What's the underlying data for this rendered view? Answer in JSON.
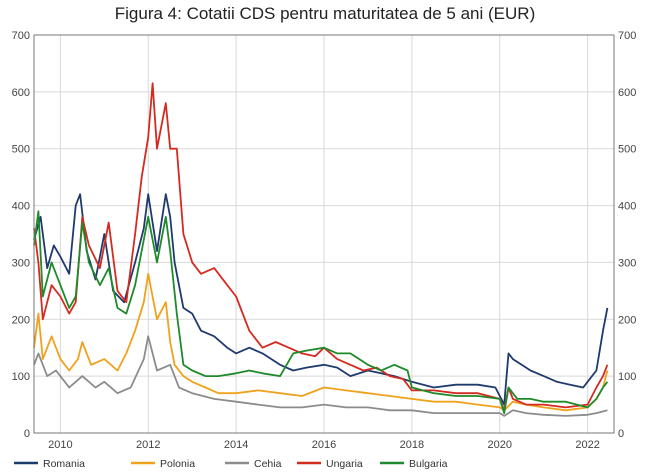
{
  "chart_data": {
    "type": "line",
    "title": "Figura 4: Cotatii CDS pentru maturitatea de 5 ani (EUR)",
    "xlabel": "",
    "ylabel": "",
    "xlim": [
      2009.4,
      2022.6
    ],
    "ylim": [
      0,
      700
    ],
    "yticks": [
      0,
      100,
      200,
      300,
      400,
      500,
      600,
      700
    ],
    "xticks": [
      2010,
      2012,
      2014,
      2016,
      2018,
      2020,
      2022
    ],
    "grid": true,
    "legend_position": "bottom",
    "series": [
      {
        "name": "Romania",
        "color": "#1f3a6e",
        "x": [
          2009.4,
          2009.55,
          2009.7,
          2009.85,
          2010.0,
          2010.2,
          2010.35,
          2010.45,
          2010.6,
          2010.8,
          2011.0,
          2011.2,
          2011.45,
          2011.7,
          2011.9,
          2012.0,
          2012.2,
          2012.4,
          2012.5,
          2012.6,
          2012.8,
          2013.0,
          2013.2,
          2013.5,
          2013.8,
          2014.0,
          2014.3,
          2014.6,
          2015.0,
          2015.3,
          2015.6,
          2016.0,
          2016.3,
          2016.6,
          2017.0,
          2017.3,
          2017.6,
          2018.0,
          2018.5,
          2019.0,
          2019.5,
          2019.9,
          2020.1,
          2020.2,
          2020.3,
          2020.5,
          2020.7,
          2021.0,
          2021.3,
          2021.6,
          2021.9,
          2022.0,
          2022.2,
          2022.35,
          2022.45
        ],
        "y": [
          340,
          380,
          290,
          330,
          310,
          280,
          400,
          420,
          320,
          270,
          350,
          250,
          230,
          300,
          360,
          420,
          320,
          420,
          380,
          300,
          220,
          210,
          180,
          170,
          150,
          140,
          150,
          140,
          120,
          110,
          115,
          120,
          115,
          100,
          110,
          105,
          100,
          90,
          80,
          85,
          85,
          80,
          50,
          140,
          130,
          120,
          110,
          100,
          90,
          85,
          80,
          90,
          110,
          180,
          220
        ]
      },
      {
        "name": "Polonia",
        "color": "#f0a21c",
        "x": [
          2009.4,
          2009.5,
          2009.6,
          2009.8,
          2010.0,
          2010.2,
          2010.4,
          2010.5,
          2010.7,
          2011.0,
          2011.3,
          2011.5,
          2011.7,
          2011.9,
          2012.0,
          2012.2,
          2012.4,
          2012.5,
          2012.6,
          2012.8,
          2013.0,
          2013.3,
          2013.6,
          2014.0,
          2014.5,
          2015.0,
          2015.5,
          2016.0,
          2016.5,
          2017.0,
          2017.5,
          2018.0,
          2018.5,
          2019.0,
          2019.5,
          2020.0,
          2020.1,
          2020.3,
          2020.6,
          2021.0,
          2021.5,
          2022.0,
          2022.2,
          2022.35,
          2022.45
        ],
        "y": [
          150,
          210,
          130,
          170,
          130,
          110,
          130,
          160,
          120,
          130,
          110,
          140,
          180,
          230,
          280,
          200,
          230,
          160,
          120,
          100,
          90,
          80,
          70,
          70,
          75,
          70,
          65,
          80,
          75,
          70,
          65,
          60,
          55,
          55,
          50,
          45,
          40,
          55,
          50,
          45,
          40,
          45,
          60,
          80,
          110
        ]
      },
      {
        "name": "Cehia",
        "color": "#8c8c8c",
        "x": [
          2009.4,
          2009.5,
          2009.7,
          2009.9,
          2010.2,
          2010.5,
          2010.8,
          2011.0,
          2011.3,
          2011.6,
          2011.9,
          2012.0,
          2012.2,
          2012.5,
          2012.7,
          2013.0,
          2013.5,
          2014.0,
          2014.5,
          2015.0,
          2015.5,
          2016.0,
          2016.5,
          2017.0,
          2017.5,
          2018.0,
          2018.5,
          2019.0,
          2019.5,
          2020.0,
          2020.1,
          2020.3,
          2020.6,
          2021.0,
          2021.5,
          2022.0,
          2022.2,
          2022.45
        ],
        "y": [
          120,
          140,
          100,
          110,
          80,
          100,
          80,
          90,
          70,
          80,
          130,
          170,
          110,
          120,
          80,
          70,
          60,
          55,
          50,
          45,
          45,
          50,
          45,
          45,
          40,
          40,
          35,
          35,
          35,
          35,
          30,
          40,
          35,
          32,
          30,
          32,
          35,
          40
        ]
      },
      {
        "name": "Ungaria",
        "color": "#d42a20",
        "x": [
          2009.4,
          2009.5,
          2009.6,
          2009.8,
          2010.0,
          2010.2,
          2010.35,
          2010.5,
          2010.65,
          2010.9,
          2011.1,
          2011.3,
          2011.5,
          2011.7,
          2011.85,
          2012.0,
          2012.1,
          2012.2,
          2012.4,
          2012.5,
          2012.65,
          2012.8,
          2013.0,
          2013.2,
          2013.5,
          2013.8,
          2014.0,
          2014.3,
          2014.6,
          2014.9,
          2015.2,
          2015.5,
          2015.8,
          2016.0,
          2016.3,
          2016.6,
          2016.9,
          2017.2,
          2017.5,
          2017.8,
          2018.0,
          2018.5,
          2019.0,
          2019.5,
          2020.0,
          2020.1,
          2020.2,
          2020.3,
          2020.6,
          2021.0,
          2021.5,
          2022.0,
          2022.2,
          2022.35,
          2022.45
        ],
        "y": [
          360,
          300,
          200,
          260,
          240,
          210,
          230,
          380,
          330,
          290,
          370,
          250,
          230,
          350,
          450,
          520,
          615,
          500,
          580,
          500,
          500,
          350,
          300,
          280,
          290,
          260,
          240,
          180,
          150,
          160,
          150,
          140,
          135,
          150,
          130,
          120,
          110,
          115,
          100,
          95,
          75,
          75,
          70,
          70,
          60,
          40,
          80,
          60,
          50,
          50,
          45,
          50,
          80,
          100,
          120
        ]
      },
      {
        "name": "Bulgaria",
        "color": "#1f8a2a",
        "x": [
          2009.4,
          2009.5,
          2009.6,
          2009.8,
          2010.0,
          2010.2,
          2010.35,
          2010.5,
          2010.65,
          2010.9,
          2011.1,
          2011.3,
          2011.5,
          2011.7,
          2011.9,
          2012.0,
          2012.2,
          2012.4,
          2012.5,
          2012.65,
          2012.8,
          2013.0,
          2013.3,
          2013.6,
          2014.0,
          2014.3,
          2014.6,
          2015.0,
          2015.3,
          2015.6,
          2016.0,
          2016.3,
          2016.6,
          2017.0,
          2017.3,
          2017.6,
          2017.9,
          2018.0,
          2018.5,
          2019.0,
          2019.5,
          2020.0,
          2020.1,
          2020.2,
          2020.4,
          2020.7,
          2021.0,
          2021.5,
          2022.0,
          2022.2,
          2022.35,
          2022.45
        ],
        "y": [
          330,
          390,
          240,
          300,
          260,
          220,
          240,
          370,
          300,
          260,
          290,
          220,
          210,
          260,
          340,
          380,
          300,
          380,
          320,
          210,
          120,
          110,
          100,
          100,
          105,
          110,
          105,
          100,
          140,
          145,
          150,
          140,
          140,
          120,
          110,
          120,
          110,
          80,
          70,
          65,
          65,
          60,
          35,
          80,
          60,
          60,
          55,
          55,
          45,
          60,
          80,
          90
        ]
      }
    ]
  }
}
